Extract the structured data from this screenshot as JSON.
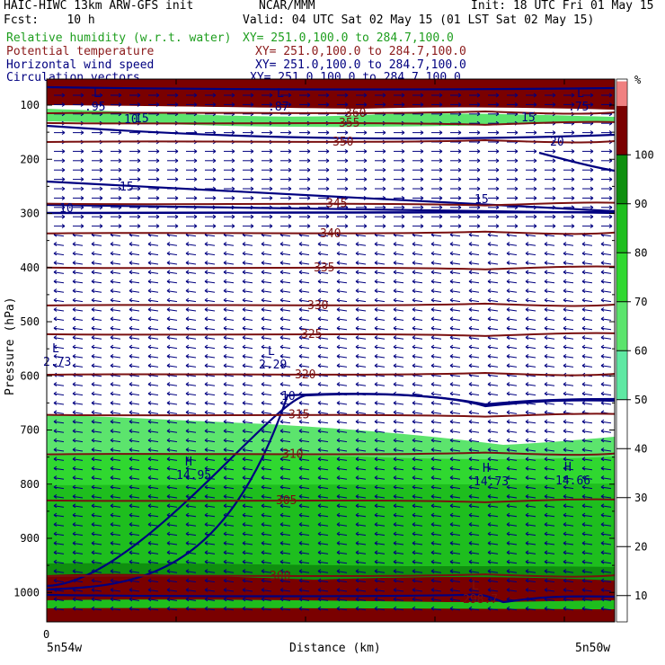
{
  "header": {
    "title": "HAIC-HIWC 13km ARW-GFS init",
    "org": "NCAR/MMM",
    "init": "Init: 18 UTC Fri 01 May 15",
    "fcst": "Fcst:    10 h",
    "valid": "Valid: 04 UTC Sat 02 May 15 (01 LST Sat 02 May 15)",
    "fields": [
      {
        "name": "Relative humidity (w.r.t. water)",
        "xy": "XY= 251.0,100.0 to 284.7,100.0",
        "color": "#1e9e1e"
      },
      {
        "name": "Potential temperature",
        "xy": "XY= 251.0,100.0 to 284.7,100.0",
        "color": "#8b1a1a"
      },
      {
        "name": "Horizontal wind speed",
        "xy": "XY= 251.0,100.0 to 284.7,100.0",
        "color": "#000080"
      },
      {
        "name": "Circulation vectors",
        "xy": "XY= 251.0,100.0 to 284.7,100.0",
        "color": "#000080"
      }
    ]
  },
  "chart_data": {
    "type": "cross-section",
    "ylabel": "Pressure (hPa)",
    "xlabel": "Distance (km)",
    "x_start_tick": "0",
    "x_left_label": "5n54w",
    "x_right_label": "5n50w",
    "yticks": [
      100,
      200,
      300,
      400,
      500,
      600,
      700,
      800,
      900,
      1000
    ],
    "ylim": [
      1050,
      65
    ],
    "colorbar": {
      "unit": "%",
      "ticks": [
        10,
        20,
        30,
        40,
        50,
        60,
        70,
        80,
        90,
        100
      ],
      "bands": [
        {
          "from": 50,
          "to": 60,
          "color": "#5fe8a3"
        },
        {
          "from": 60,
          "to": 70,
          "color": "#5ce46d"
        },
        {
          "from": 70,
          "to": 80,
          "color": "#30d830"
        },
        {
          "from": 80,
          "to": 90,
          "color": "#1ebe1e"
        },
        {
          "from": 90,
          "to": 100,
          "color": "#0f8f0f"
        },
        {
          "from": 100,
          "to": 110,
          "color": "#7a0000"
        },
        {
          "from": 110,
          "to": 115,
          "color": "#f08080"
        }
      ]
    },
    "theta_contours": [
      {
        "label": "300",
        "p": 970
      },
      {
        "label": "305",
        "p": 830
      },
      {
        "label": "310",
        "p": 745
      },
      {
        "label": "315",
        "p": 672
      },
      {
        "label": "320",
        "p": 598
      },
      {
        "label": "325",
        "p": 523
      },
      {
        "label": "330",
        "p": 470
      },
      {
        "label": "335",
        "p": 400
      },
      {
        "label": "340",
        "p": 337
      },
      {
        "label": "345",
        "p": 282
      },
      {
        "label": "350",
        "p": 168
      },
      {
        "label": "355",
        "p": 133
      },
      {
        "label": "360",
        "p": 115
      }
    ],
    "wind_labels": [
      "10",
      "15",
      "15",
      "10",
      "15",
      "20",
      "15",
      "10"
    ],
    "extrema": [
      {
        "type": "L",
        "value": "2.73"
      },
      {
        "type": "L",
        "value": "2.29"
      },
      {
        "type": "H",
        "value": "14.95"
      },
      {
        "type": "H",
        "value": "14.73"
      },
      {
        "type": "H",
        "value": "14.66"
      },
      {
        "type": "L",
        "value": "298.7"
      },
      {
        "type": "L",
        "value": ".95"
      },
      {
        "type": "L",
        "value": ".87"
      },
      {
        "type": "L",
        "value": ".75"
      }
    ]
  }
}
